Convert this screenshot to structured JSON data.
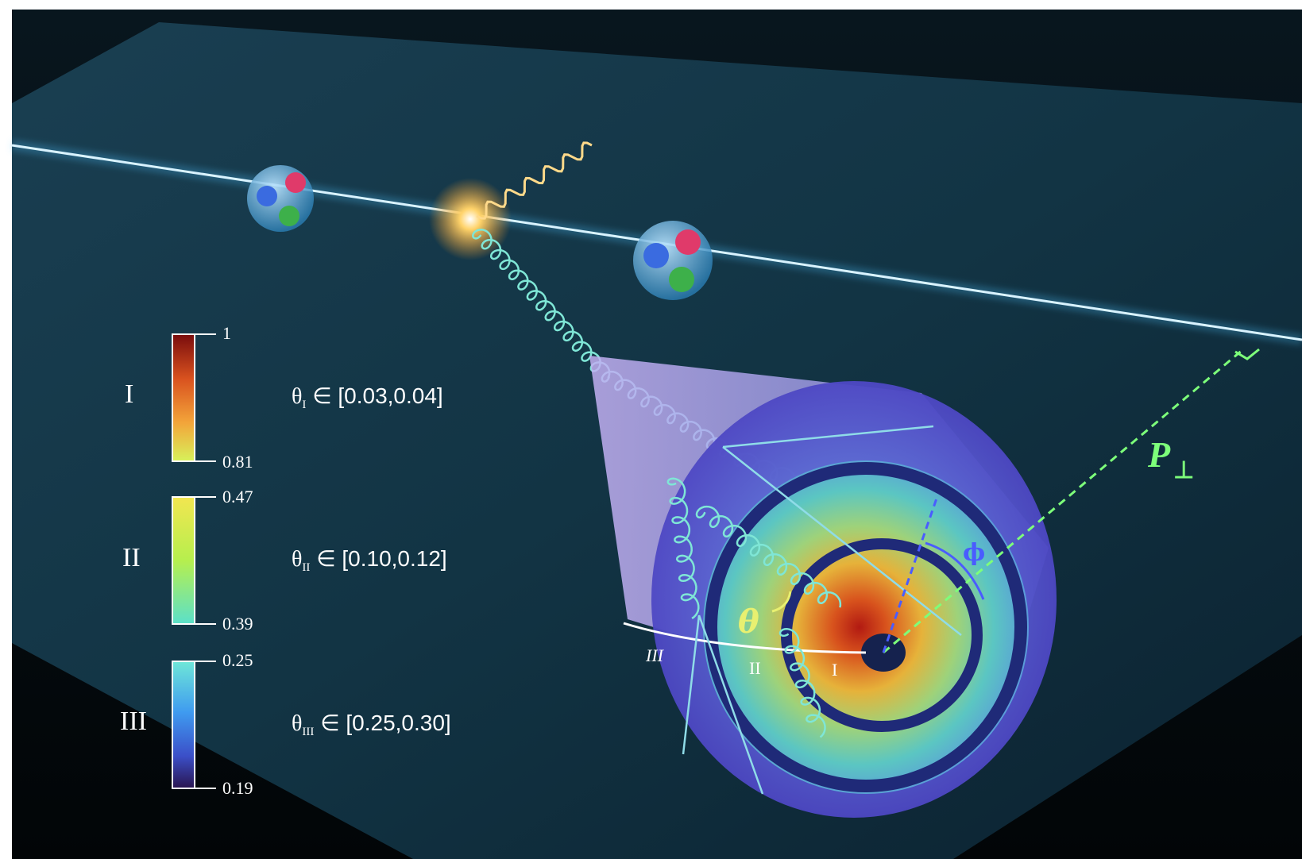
{
  "colorbars": [
    {
      "region": "I",
      "top_value": "1",
      "bottom_value": "0.81",
      "theta_symbol": "θ",
      "theta_sub": "I",
      "range_text": "∈ [0.03,0.04]"
    },
    {
      "region": "II",
      "top_value": "0.47",
      "bottom_value": "0.39",
      "theta_symbol": "θ",
      "theta_sub": "II",
      "range_text": "∈ [0.10,0.12]"
    },
    {
      "region": "III",
      "top_value": "0.25",
      "bottom_value": "0.19",
      "theta_symbol": "θ",
      "theta_sub": "III",
      "range_text": "∈ [0.25,0.30]"
    }
  ],
  "jet": {
    "region_labels": [
      "III",
      "II",
      "I"
    ],
    "theta_label": "θ",
    "phi_label": "ϕ"
  },
  "momentum_label": {
    "main": "P",
    "sub": "⊥"
  },
  "colors": {
    "background": "#102a38",
    "beam": "#bfe9ff",
    "gluon": "#7fe6d6",
    "p_perp": "#7dff7a",
    "phi": "#4a5cff",
    "theta": "#e8f070"
  }
}
